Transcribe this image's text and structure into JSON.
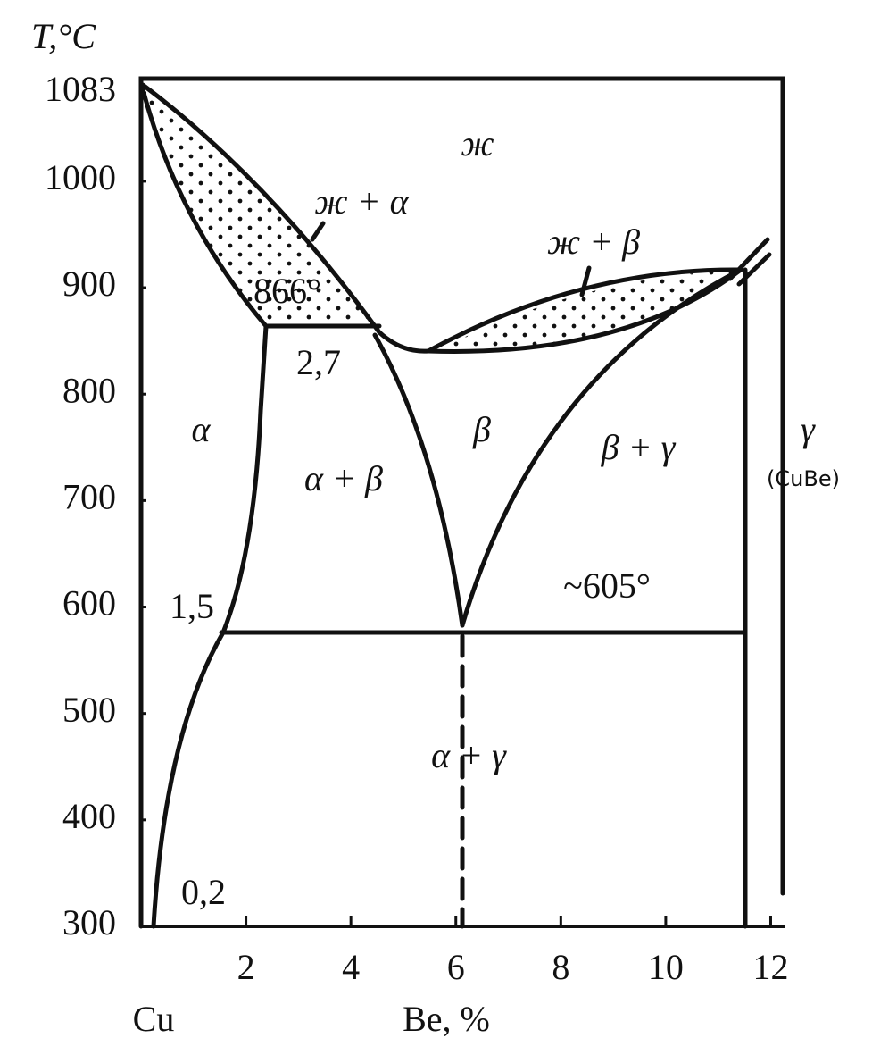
{
  "chart_data": {
    "type": "phase-diagram",
    "y_label": "T,°C",
    "x_label": "Be, %",
    "x_origin_label": "Cu",
    "xlim": [
      0,
      12.4
    ],
    "ylim": [
      300,
      1083
    ],
    "xticks": [
      2,
      4,
      6,
      8,
      10,
      12
    ],
    "yticks": [
      300,
      400,
      500,
      600,
      700,
      800,
      900,
      1000,
      1083
    ],
    "regions": [
      {
        "label": "ж"
      },
      {
        "label": "ж + α"
      },
      {
        "label": "ж + β"
      },
      {
        "label": "α"
      },
      {
        "label": "β"
      },
      {
        "label": "α + β"
      },
      {
        "label": "β + γ"
      },
      {
        "label": "α + γ"
      },
      {
        "label": "γ"
      },
      {
        "label": "(CuBe)"
      }
    ],
    "annotations": [
      "866°",
      "2,7",
      "1,5",
      "0,2",
      "~605°"
    ]
  }
}
